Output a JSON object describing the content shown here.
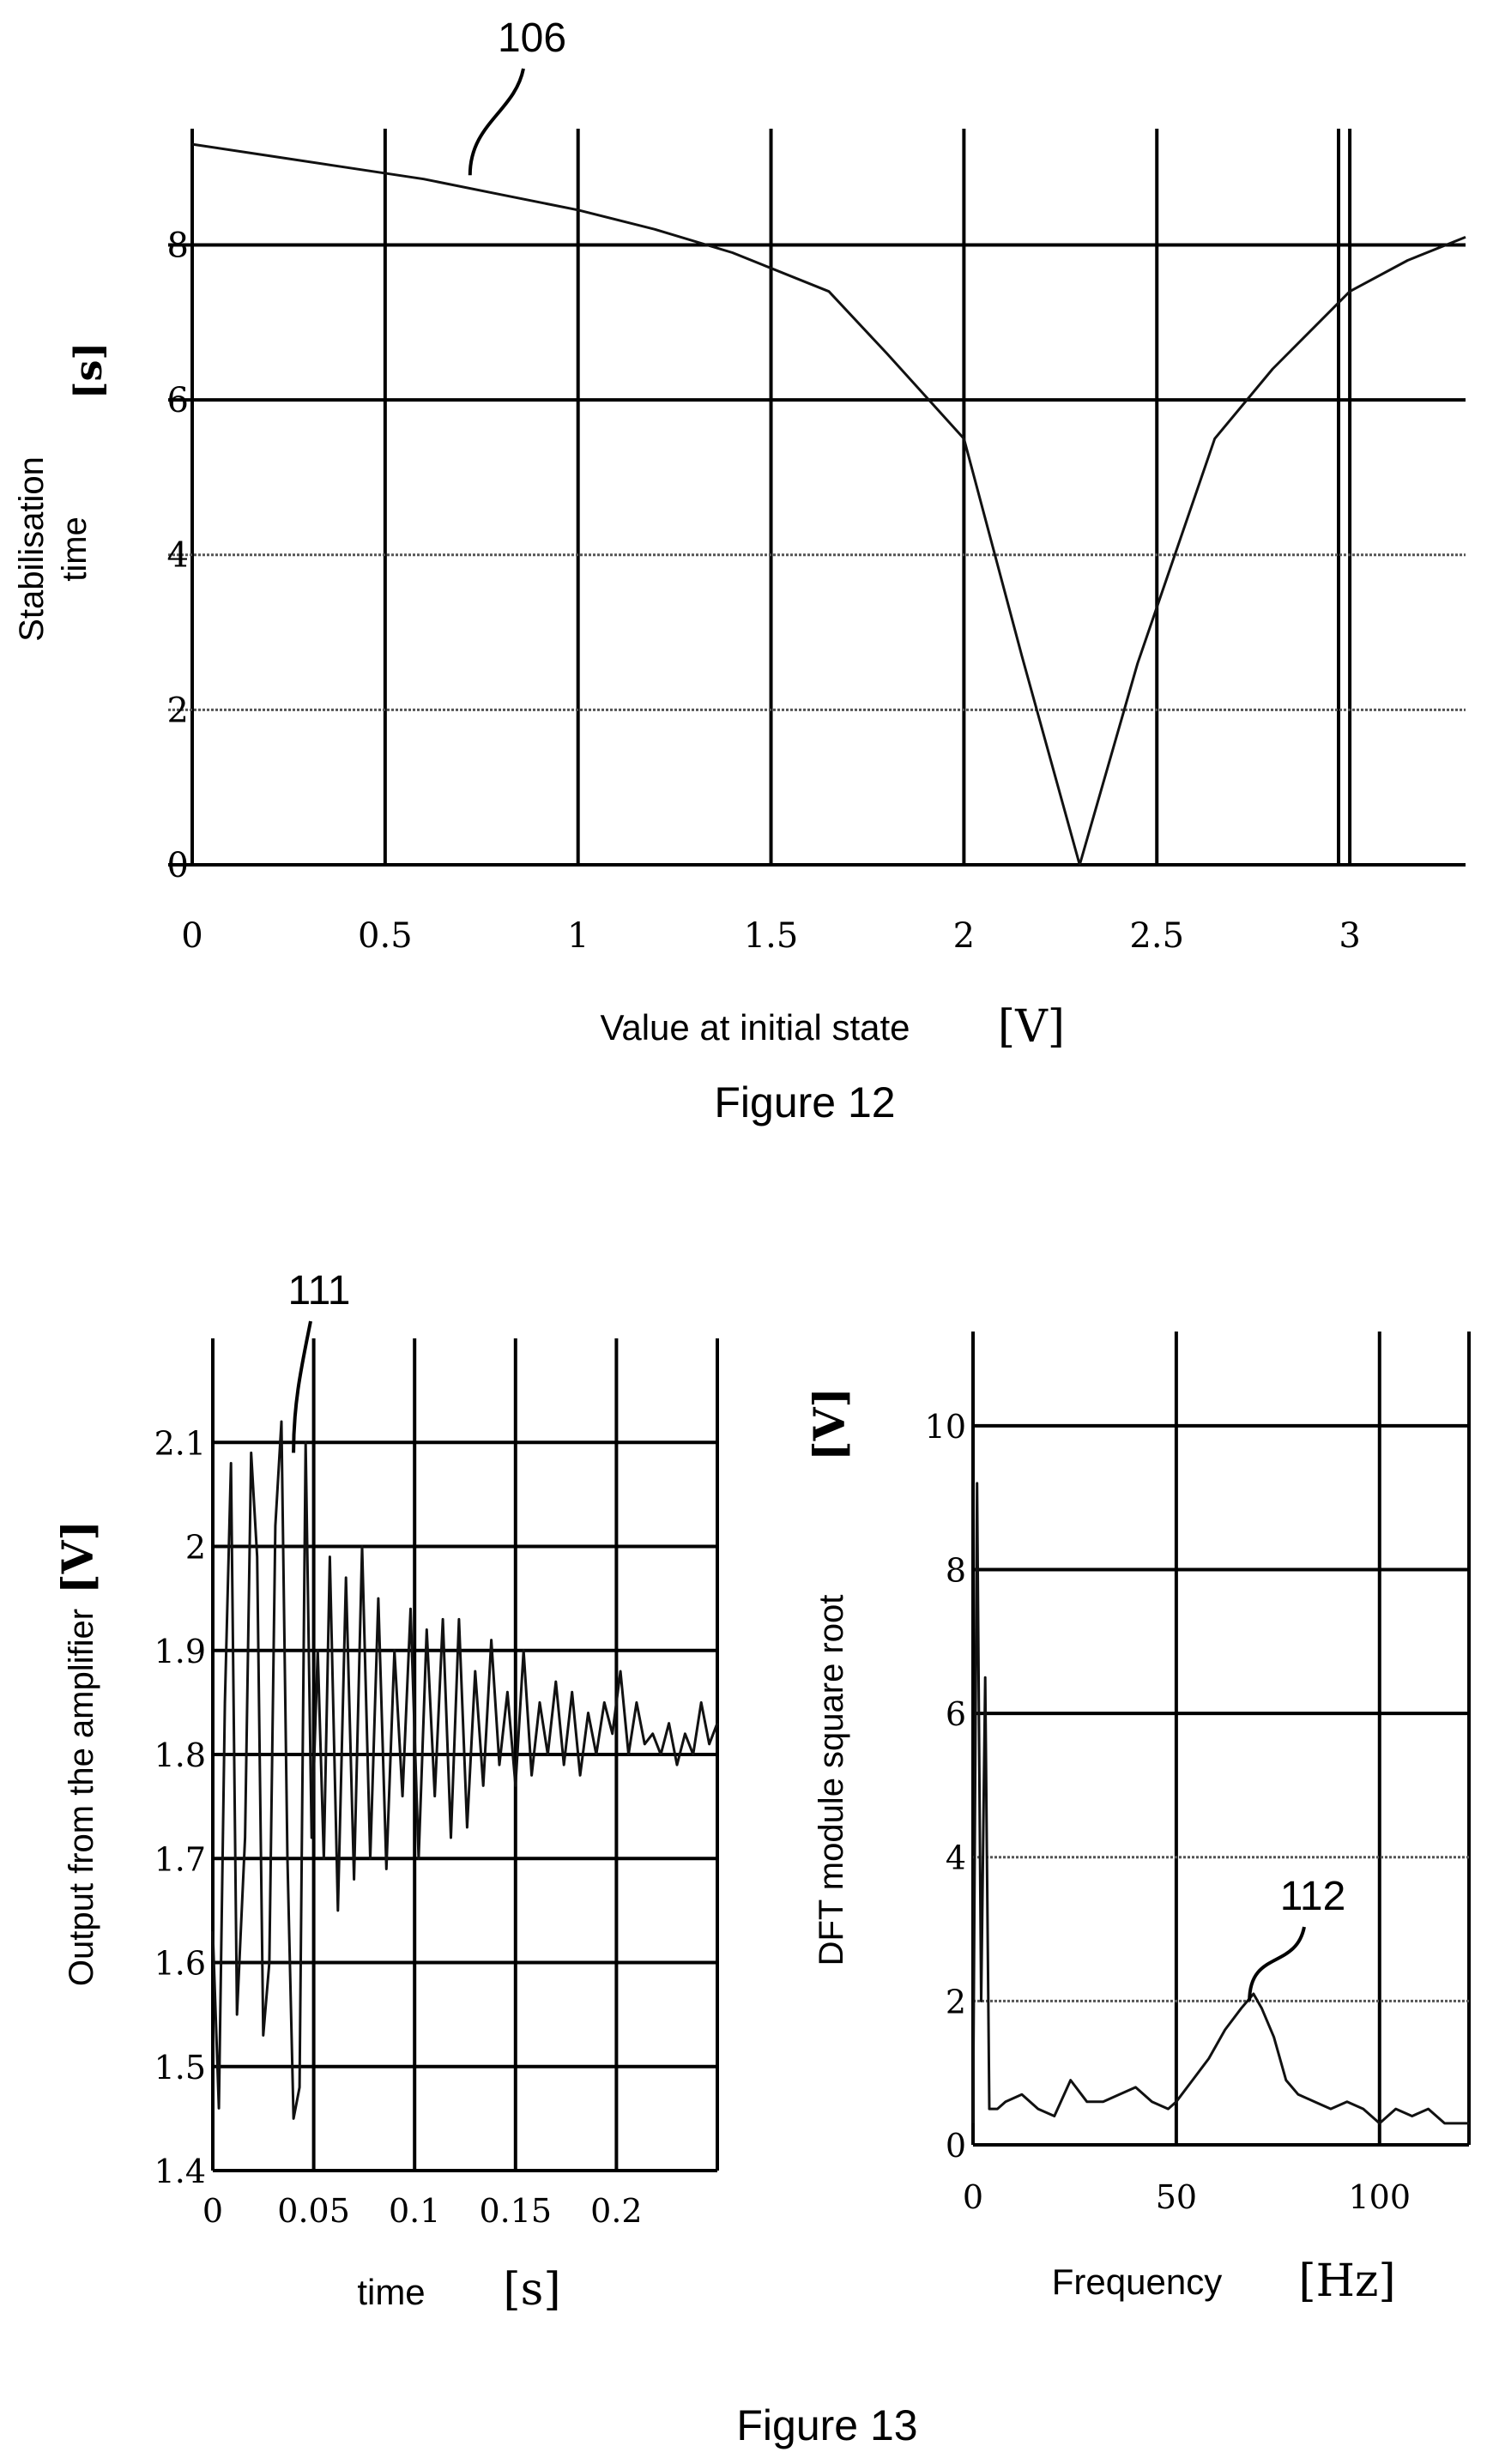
{
  "chart_data": [
    {
      "type": "line",
      "figure_label": "Figure 12",
      "title": "",
      "xlabel": "Value at initial state",
      "xunit": "[V]",
      "ylabel_line1": "Stabilisation",
      "ylabel_line2": "time",
      "yunit": "[s]",
      "xlim": [
        0,
        3.3
      ],
      "ylim": [
        0,
        9.5
      ],
      "grid": true,
      "x_ticks": [
        0,
        0.5,
        1,
        1.5,
        2,
        2.5,
        3
      ],
      "x_tick_labels": [
        "0",
        "0.5",
        "1",
        "1.5",
        "2",
        "2.5",
        "3"
      ],
      "y_ticks": [
        0,
        2,
        4,
        6,
        8
      ],
      "y_tick_labels": [
        "0",
        "2",
        "4",
        "6",
        "8"
      ],
      "series": [
        {
          "ref": "106",
          "x": [
            0,
            0.2,
            0.4,
            0.6,
            0.8,
            1.0,
            1.2,
            1.4,
            1.65,
            1.8,
            2.0,
            2.15,
            2.3,
            2.45,
            2.65,
            2.8,
            3.0,
            3.15,
            3.3
          ],
          "values": [
            9.3,
            9.15,
            9.0,
            8.85,
            8.65,
            8.45,
            8.2,
            7.9,
            7.4,
            6.6,
            5.5,
            2.7,
            0.0,
            2.6,
            5.5,
            6.4,
            7.4,
            7.8,
            8.1
          ]
        }
      ],
      "annotation": "106",
      "annotation_x": 0.72,
      "annotation_y": 8.9
    },
    {
      "type": "line",
      "title": "",
      "xlabel": "time",
      "xunit": "[s]",
      "ylabel": "Output from the amplifier",
      "yunit": "[V]",
      "xlim": [
        0,
        0.25
      ],
      "ylim": [
        1.4,
        2.2
      ],
      "grid": true,
      "x_ticks": [
        0,
        0.05,
        0.1,
        0.15,
        0.2
      ],
      "x_tick_labels": [
        "0",
        "0.05",
        "0.1",
        "0.15",
        "0.2"
      ],
      "y_ticks": [
        1.4,
        1.5,
        1.6,
        1.7,
        1.8,
        1.9,
        2.0,
        2.1
      ],
      "y_tick_labels": [
        "1.4",
        "1.5",
        "1.6",
        "1.7",
        "1.8",
        "1.9",
        "2",
        "2.1"
      ],
      "series": [
        {
          "ref": "111",
          "x": [
            0,
            0.003,
            0.006,
            0.009,
            0.012,
            0.016,
            0.019,
            0.022,
            0.025,
            0.028,
            0.031,
            0.034,
            0.037,
            0.04,
            0.043,
            0.046,
            0.049,
            0.052,
            0.055,
            0.058,
            0.062,
            0.066,
            0.07,
            0.074,
            0.078,
            0.082,
            0.086,
            0.09,
            0.094,
            0.098,
            0.102,
            0.106,
            0.11,
            0.114,
            0.118,
            0.122,
            0.126,
            0.13,
            0.134,
            0.138,
            0.142,
            0.146,
            0.15,
            0.154,
            0.158,
            0.162,
            0.166,
            0.17,
            0.174,
            0.178,
            0.182,
            0.186,
            0.19,
            0.194,
            0.198,
            0.202,
            0.206,
            0.21,
            0.214,
            0.218,
            0.222,
            0.226,
            0.23,
            0.234,
            0.238,
            0.242,
            0.246,
            0.25
          ],
          "values": [
            1.63,
            1.46,
            1.85,
            2.08,
            1.55,
            1.72,
            2.09,
            1.99,
            1.53,
            1.6,
            2.02,
            2.12,
            1.7,
            1.45,
            1.48,
            2.1,
            1.72,
            1.9,
            1.7,
            1.99,
            1.65,
            1.97,
            1.68,
            2.0,
            1.7,
            1.95,
            1.69,
            1.9,
            1.76,
            1.94,
            1.7,
            1.92,
            1.76,
            1.93,
            1.72,
            1.93,
            1.73,
            1.88,
            1.77,
            1.91,
            1.79,
            1.86,
            1.77,
            1.9,
            1.78,
            1.85,
            1.8,
            1.87,
            1.79,
            1.86,
            1.78,
            1.84,
            1.8,
            1.85,
            1.82,
            1.88,
            1.8,
            1.85,
            1.81,
            1.82,
            1.8,
            1.83,
            1.79,
            1.82,
            1.8,
            1.85,
            1.81,
            1.83
          ]
        }
      ],
      "annotation": "111",
      "annotation_x": 0.04,
      "annotation_y": 2.09
    },
    {
      "type": "line",
      "title": "",
      "xlabel": "Frequency",
      "xunit": "[Hz]",
      "ylabel": "DFT module square root",
      "yunit": "[V]",
      "xlim": [
        0,
        122
      ],
      "ylim": [
        0,
        11
      ],
      "grid": true,
      "x_ticks": [
        0,
        50,
        100
      ],
      "x_tick_labels": [
        "0",
        "50",
        "100"
      ],
      "y_ticks": [
        0,
        2,
        4,
        6,
        8,
        10
      ],
      "y_tick_labels": [
        "0",
        "2",
        "4",
        "6",
        "8",
        "10"
      ],
      "series": [
        {
          "ref": "112",
          "x": [
            0,
            1,
            2,
            3,
            4,
            6,
            8,
            12,
            16,
            20,
            24,
            28,
            32,
            36,
            40,
            44,
            48,
            50,
            54,
            58,
            62,
            66,
            69,
            71,
            74,
            77,
            80,
            84,
            88,
            92,
            96,
            100,
            104,
            108,
            112,
            116,
            120,
            122
          ],
          "values": [
            0.3,
            9.2,
            2.0,
            6.5,
            0.5,
            0.5,
            0.6,
            0.7,
            0.5,
            0.4,
            0.9,
            0.6,
            0.6,
            0.7,
            0.8,
            0.6,
            0.5,
            0.6,
            0.9,
            1.2,
            1.6,
            1.9,
            2.1,
            1.9,
            1.5,
            0.9,
            0.7,
            0.6,
            0.5,
            0.6,
            0.5,
            0.3,
            0.5,
            0.4,
            0.5,
            0.3,
            0.3,
            0.3
          ]
        }
      ],
      "annotation": "112",
      "annotation_x": 68,
      "annotation_y": 2.0
    }
  ],
  "figure13_label": "Figure 13"
}
